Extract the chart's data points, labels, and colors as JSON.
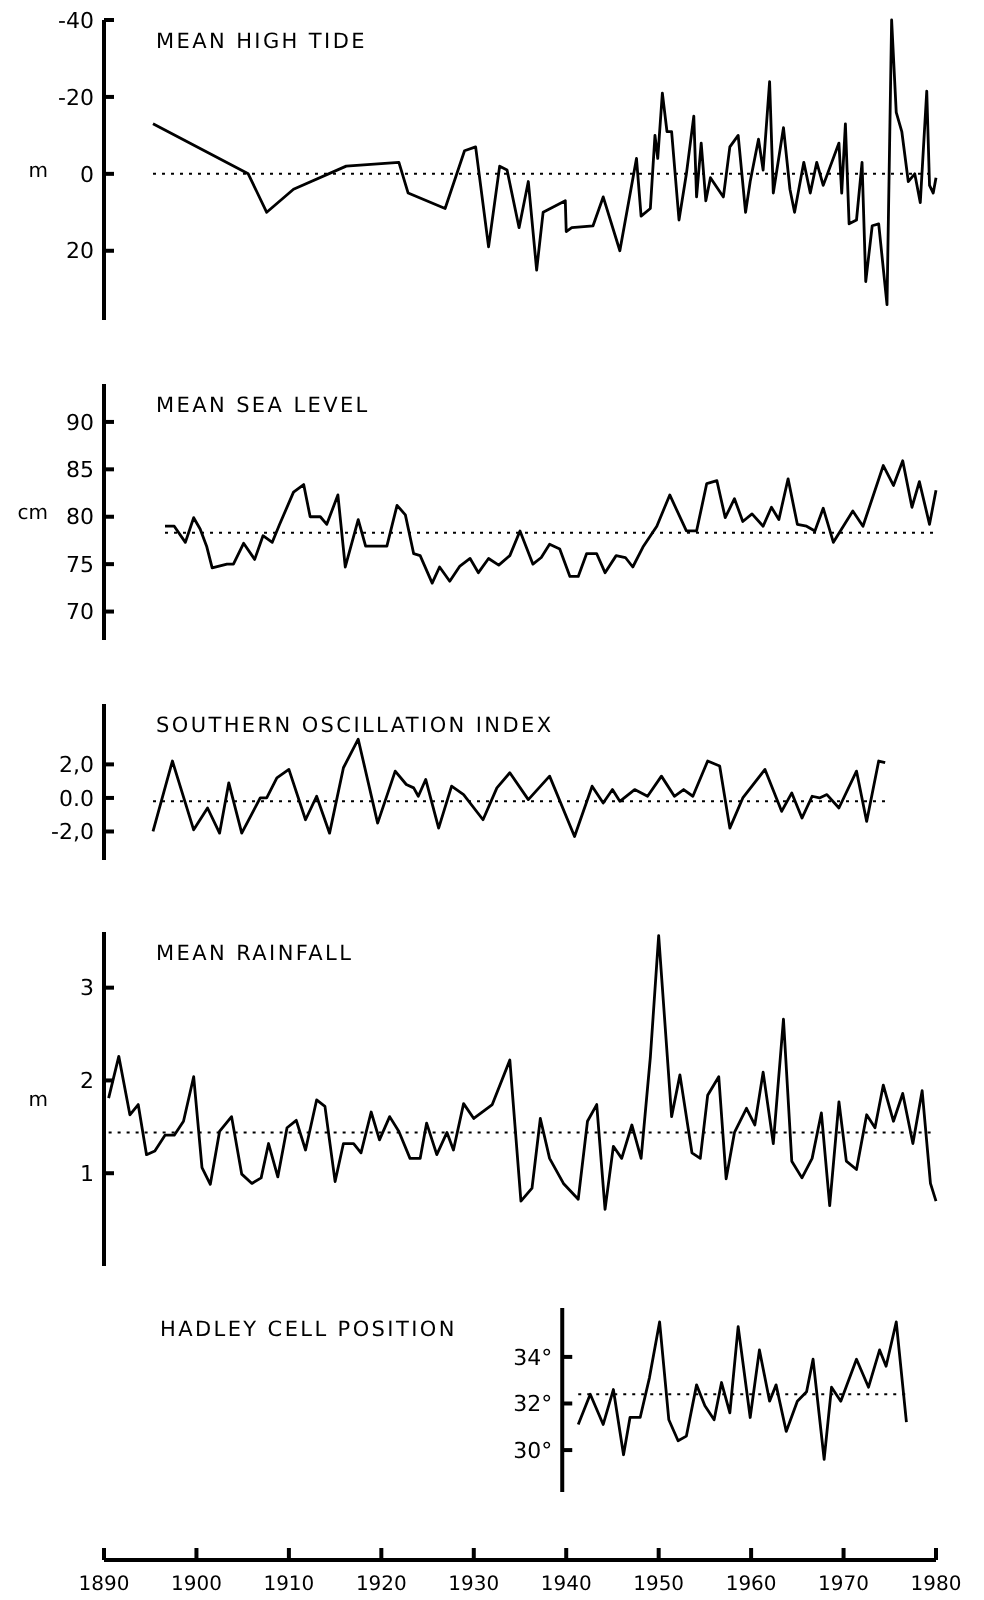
{
  "chart_data": [
    {
      "type": "line",
      "title": "MEAN HIGH TIDE",
      "ylabel": "m",
      "x": [
        1895.3,
        1905.6,
        1907.6,
        1910.5,
        1916.2,
        1921.9,
        1922.9,
        1926.9,
        1929,
        1930.2,
        1931.6,
        1932.8,
        1933.6,
        1934.9,
        1935.9,
        1936.8,
        1937.5,
        1939.9,
        1940,
        1940.6,
        1942.9,
        1944,
        1945.8,
        1947.6,
        1948.1,
        1949.1,
        1949.6,
        1949.9,
        1950.4,
        1950.9,
        1951.4,
        1952.2,
        1953,
        1953.8,
        1954.1,
        1954.6,
        1955.1,
        1955.6,
        1957,
        1957.7,
        1958.6,
        1959.4,
        1959.9,
        1960.8,
        1961.3,
        1962,
        1962.4,
        1963.5,
        1964.2,
        1964.7,
        1965.7,
        1966.4,
        1967.1,
        1967.8,
        1969.5,
        1969.8,
        1970.2,
        1970.6,
        1971.4,
        1972,
        1972.4,
        1973.1,
        1973.8,
        1974.7,
        1975.2,
        1975.7,
        1976.3,
        1977,
        1977.7,
        1978.3,
        1979,
        1979.3,
        1979.7,
        1980
      ],
      "series": [
        {
          "color": "#000000",
          "values": [
            -13,
            0,
            10,
            4,
            -2,
            -3,
            5,
            9,
            -6,
            -7,
            19,
            -2,
            -1,
            14,
            2,
            25,
            10,
            7,
            15,
            14,
            13.5,
            6,
            20,
            -4,
            11,
            9,
            -10,
            -4,
            -21,
            -11,
            -11,
            12,
            0,
            -15,
            6,
            -8,
            7,
            1,
            6,
            -7,
            -10,
            10,
            2,
            -9,
            -1,
            -24,
            5,
            -12,
            4,
            10,
            -3,
            5,
            -3,
            3,
            -8,
            5,
            -13,
            13,
            12,
            -3,
            28,
            13.5,
            13,
            34,
            -40,
            -16,
            -11,
            2,
            0,
            7.5,
            -21.5,
            3,
            5,
            1
          ]
        }
      ],
      "xlim": [
        1890,
        1980
      ],
      "ylim": [
        38,
        -40
      ],
      "yticks": [
        -40,
        -20,
        0,
        20
      ],
      "tick_labels": "y",
      "ref_lines": [
        {
          "axis": "y",
          "value": 0,
          "line_style": "dotted"
        }
      ]
    },
    {
      "type": "line",
      "title": "MEAN SEA LEVEL",
      "ylabel": "cm",
      "x": [
        1896.6,
        1897.6,
        1898.8,
        1899.7,
        1900.4,
        1901.1,
        1901.7,
        1903.3,
        1904,
        1905.1,
        1906.3,
        1907.2,
        1908.2,
        1909,
        1910.5,
        1911.6,
        1912.3,
        1913.4,
        1914.1,
        1915.3,
        1916.1,
        1917.5,
        1918.3,
        1920.6,
        1921.7,
        1922.6,
        1923.5,
        1924.2,
        1925.5,
        1926.3,
        1927.4,
        1928.5,
        1929.6,
        1930.5,
        1931.6,
        1932.7,
        1933.9,
        1935,
        1936.4,
        1937.3,
        1938.2,
        1939.3,
        1940.4,
        1941.3,
        1942.2,
        1943.3,
        1944.2,
        1945.4,
        1946.4,
        1947.2,
        1948.3,
        1949.8,
        1951.2,
        1953,
        1954.1,
        1955.2,
        1956.3,
        1957.2,
        1958.2,
        1959.1,
        1960.1,
        1961.3,
        1962.2,
        1963,
        1964,
        1965,
        1966,
        1966.9,
        1967.8,
        1968.9,
        1971,
        1972.1,
        1974.3,
        1975.4,
        1976.4,
        1977.4,
        1978.2,
        1979.3,
        1980
      ],
      "series": [
        {
          "color": "#000000",
          "values": [
            79,
            79,
            77.3,
            79.9,
            78.7,
            76.9,
            74.6,
            75,
            75,
            77.2,
            75.5,
            78,
            77.3,
            79.2,
            82.6,
            83.4,
            80,
            80,
            79.2,
            82.3,
            74.7,
            79.7,
            76.9,
            76.9,
            81.2,
            80.2,
            76.1,
            75.9,
            73,
            74.7,
            73.2,
            74.8,
            75.6,
            74.1,
            75.6,
            74.9,
            75.9,
            78.5,
            75,
            75.7,
            77.1,
            76.6,
            73.7,
            73.7,
            76.1,
            76.1,
            74.1,
            75.9,
            75.7,
            74.7,
            76.8,
            79,
            82.3,
            78.5,
            78.5,
            83.5,
            83.8,
            79.9,
            81.9,
            79.5,
            80.3,
            79,
            81,
            79.7,
            84,
            79.2,
            79,
            78.5,
            80.9,
            77.3,
            80.6,
            79,
            85.4,
            83.3,
            85.9,
            81,
            83.7,
            79.2,
            82.8
          ]
        }
      ],
      "xlim": [
        1890,
        1980
      ],
      "ylim": [
        67,
        94
      ],
      "yticks": [
        70,
        75,
        80,
        85,
        90
      ],
      "tick_labels": "y",
      "ref_lines": [
        {
          "axis": "y",
          "value": 78.3,
          "line_style": "dotted"
        }
      ]
    },
    {
      "type": "line",
      "title": "SOUTHERN OSCILLATION INDEX",
      "x": [
        1895.3,
        1897.4,
        1899.7,
        1901.2,
        1902.5,
        1903.5,
        1904.9,
        1906.9,
        1907.6,
        1908.7,
        1910,
        1911.8,
        1913,
        1914.4,
        1915.9,
        1917.5,
        1919.6,
        1921.5,
        1922.7,
        1923.5,
        1924,
        1924.8,
        1926.2,
        1927.6,
        1928.9,
        1931,
        1932.5,
        1933.9,
        1935.9,
        1938.2,
        1940.9,
        1942.8,
        1944,
        1945,
        1945.8,
        1947.4,
        1948.8,
        1950.3,
        1951.7,
        1952.7,
        1953.7,
        1955.3,
        1956.6,
        1957.7,
        1959.1,
        1961.5,
        1963.3,
        1964.4,
        1965.5,
        1966.6,
        1967.4,
        1968.2,
        1969.5,
        1971.4,
        1972.5,
        1973.8,
        1974.5
      ],
      "series": [
        {
          "color": "#000000",
          "values": [
            -2,
            2.2,
            -1.9,
            -0.6,
            -2.1,
            0.9,
            -2.1,
            0,
            0,
            1.2,
            1.7,
            -1.3,
            0.1,
            -2.1,
            1.8,
            3.5,
            -1.5,
            1.6,
            0.8,
            0.6,
            0.1,
            1.1,
            -1.8,
            0.7,
            0.2,
            -1.3,
            0.6,
            1.5,
            -0.1,
            1.3,
            -2.3,
            0.7,
            -0.3,
            0.5,
            -0.2,
            0.5,
            0.1,
            1.3,
            0.1,
            0.5,
            0.1,
            2.2,
            1.9,
            -1.8,
            0,
            1.7,
            -0.8,
            0.3,
            -1.2,
            0.1,
            0,
            0.2,
            -0.6,
            1.6,
            -1.4,
            2.2,
            2.1
          ]
        }
      ],
      "xlim": [
        1890,
        1980
      ],
      "ylim": [
        -3.7,
        5.6
      ],
      "yticks": [
        {
          "value": -2,
          "label": "-2,0"
        },
        {
          "value": 0,
          "label": "0.0"
        },
        {
          "value": 2,
          "label": "2,0"
        }
      ],
      "tick_labels": "y",
      "ref_lines": [
        {
          "axis": "y",
          "value": -0.2,
          "line_style": "dotted"
        }
      ]
    },
    {
      "type": "line",
      "title": "MEAN RAINFALL",
      "ylabel": "m",
      "x": [
        1890.5,
        1891.6,
        1892.8,
        1893.7,
        1894.6,
        1895.5,
        1896.6,
        1897.6,
        1898.6,
        1899.7,
        1900.6,
        1901.5,
        1902.5,
        1903.8,
        1904.9,
        1906,
        1907,
        1907.8,
        1908.8,
        1909.8,
        1910.8,
        1911.8,
        1913,
        1913.9,
        1915,
        1915.9,
        1917,
        1917.8,
        1918.9,
        1919.8,
        1920.9,
        1921.9,
        1923.1,
        1924.2,
        1924.9,
        1926,
        1927.1,
        1927.8,
        1928.9,
        1930,
        1930.8,
        1932,
        1933.9,
        1935.1,
        1936.3,
        1937.2,
        1938.2,
        1939.7,
        1941.3,
        1942.3,
        1943.3,
        1944.2,
        1945.1,
        1946,
        1947.1,
        1948.1,
        1949.1,
        1950,
        1951.4,
        1952.3,
        1953.6,
        1954.5,
        1955.3,
        1956.5,
        1957.3,
        1958.2,
        1959.5,
        1960.4,
        1961.3,
        1962.4,
        1963.5,
        1964.4,
        1965.5,
        1966.6,
        1967.6,
        1968.5,
        1969.5,
        1970.3,
        1971.4,
        1972.5,
        1973.4,
        1974.3,
        1975.4,
        1976.4,
        1977.5,
        1978.5,
        1979.4,
        1980
      ],
      "series": [
        {
          "color": "#000000",
          "values": [
            1.81,
            2.26,
            1.63,
            1.74,
            1.2,
            1.24,
            1.41,
            1.41,
            1.56,
            2.04,
            1.06,
            0.88,
            1.45,
            1.61,
            0.99,
            0.89,
            0.95,
            1.32,
            0.96,
            1.49,
            1.57,
            1.25,
            1.79,
            1.72,
            0.91,
            1.32,
            1.32,
            1.22,
            1.66,
            1.36,
            1.61,
            1.45,
            1.16,
            1.16,
            1.54,
            1.2,
            1.44,
            1.25,
            1.75,
            1.59,
            1.65,
            1.74,
            2.22,
            0.7,
            0.84,
            1.59,
            1.16,
            0.89,
            0.72,
            1.56,
            1.74,
            0.61,
            1.29,
            1.16,
            1.52,
            1.16,
            2.25,
            3.56,
            1.61,
            2.06,
            1.22,
            1.16,
            1.84,
            2.04,
            0.94,
            1.44,
            1.7,
            1.52,
            2.09,
            1.32,
            2.66,
            1.13,
            0.95,
            1.16,
            1.65,
            0.65,
            1.77,
            1.13,
            1.04,
            1.63,
            1.49,
            1.95,
            1.56,
            1.86,
            1.32,
            1.89,
            0.89,
            0.7
          ]
        }
      ],
      "xlim": [
        1890,
        1980
      ],
      "ylim": [
        0,
        3.6
      ],
      "yticks": [
        1,
        2,
        3
      ],
      "tick_labels": "y",
      "ref_lines": [
        {
          "axis": "y",
          "value": 1.44,
          "line_style": "dotted"
        }
      ]
    },
    {
      "type": "line",
      "title": "HADLEY CELL POSITION",
      "x": [
        1941.3,
        1942.6,
        1944,
        1945.1,
        1946.2,
        1946.9,
        1948,
        1949,
        1950.1,
        1951.1,
        1952.1,
        1953,
        1954.1,
        1955,
        1956,
        1956.8,
        1957.7,
        1958.6,
        1959.9,
        1960.9,
        1962,
        1962.7,
        1963.8,
        1965,
        1966,
        1966.7,
        1967.9,
        1968.7,
        1969.7,
        1971.4,
        1972.7,
        1973.9,
        1974.6,
        1975.7,
        1976.8
      ],
      "series": [
        {
          "color": "#000000",
          "values": [
            31.1,
            32.4,
            31.1,
            32.6,
            29.8,
            31.4,
            31.4,
            33.1,
            35.5,
            31.3,
            30.4,
            30.6,
            32.8,
            31.9,
            31.3,
            32.9,
            31.6,
            35.3,
            31.4,
            34.3,
            32.1,
            32.8,
            30.8,
            32.1,
            32.5,
            33.9,
            29.6,
            32.7,
            32.1,
            33.9,
            32.7,
            34.3,
            33.6,
            35.5,
            31.2
          ]
        }
      ],
      "xlim": [
        1890,
        1980
      ],
      "xticks": [
        1890,
        1900,
        1910,
        1920,
        1930,
        1940,
        1950,
        1960,
        1970,
        1980
      ],
      "ylim": [
        28.2,
        36.1
      ],
      "yticks": [
        {
          "value": 30,
          "label": "30°"
        },
        {
          "value": 32,
          "label": "32°"
        },
        {
          "value": 34,
          "label": "34°"
        }
      ],
      "ref_lines": [
        {
          "axis": "y",
          "value": 32.4,
          "line_style": "dotted"
        }
      ]
    }
  ]
}
